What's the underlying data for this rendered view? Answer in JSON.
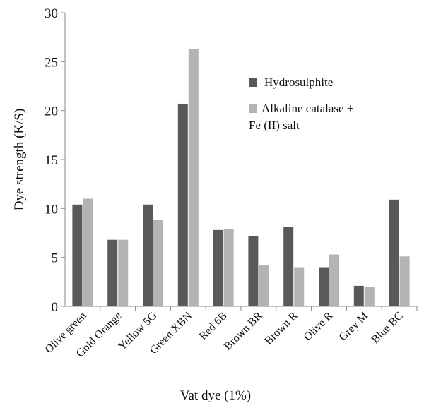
{
  "chart_data": {
    "type": "bar",
    "title": "",
    "xlabel": "Vat dye (1%)",
    "ylabel": "Dye strength (K/S)",
    "ylim": [
      0,
      30
    ],
    "yticks": [
      0,
      5,
      10,
      15,
      20,
      25,
      30
    ],
    "categories": [
      "Olive green",
      "Gold Orange",
      "Yellow 5G",
      "Green XBN",
      "Red 6B",
      "Brown BR",
      "Brown R",
      "Olive R",
      "Grey M",
      "Blue BC"
    ],
    "series": [
      {
        "name": "Hydrosulphite",
        "color": "#595959",
        "values": [
          10.4,
          6.8,
          10.4,
          20.7,
          7.8,
          7.2,
          8.1,
          4.0,
          2.1,
          10.9
        ]
      },
      {
        "name_lines": [
          "Alkaline catalase +",
          "Fe (II) salt"
        ],
        "color": "#b3b3b3",
        "values": [
          11.0,
          6.8,
          8.8,
          26.3,
          7.9,
          4.2,
          4.0,
          5.3,
          2.0,
          5.1
        ]
      }
    ],
    "grid": false,
    "legend_position": "top-right"
  }
}
